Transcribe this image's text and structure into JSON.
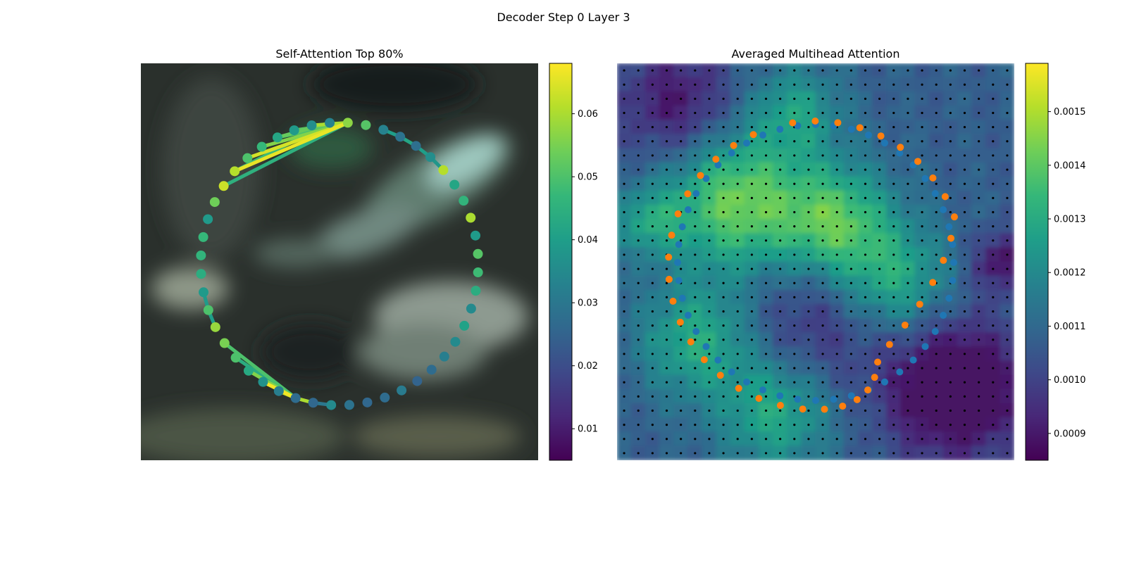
{
  "figure": {
    "suptitle": "Decoder Step 0 Layer 3"
  },
  "colors": {
    "viridis": [
      "#440154",
      "#482878",
      "#3e4989",
      "#31688e",
      "#26828e",
      "#1f9e89",
      "#35b779",
      "#6ece58",
      "#b5de2b",
      "#fde725"
    ],
    "blue_points": "#1f77b4",
    "orange_points": "#ff7f0e",
    "grid_dots": "#000000"
  },
  "chart_data": [
    {
      "type": "scatter",
      "title": "Self-Attention Top 80%",
      "description_of_marks": "48 contour points on a circle, colored by attention weight; line segments connect attending point pairs",
      "colorbar": {
        "min": 0.005,
        "max": 0.068,
        "ticks": [
          "0.01",
          "0.02",
          "0.03",
          "0.04",
          "0.05",
          "0.06"
        ],
        "tick_values": [
          0.01,
          0.02,
          0.03,
          0.04,
          0.05,
          0.06
        ]
      },
      "point_weights": [
        0.057,
        0.051,
        0.033,
        0.029,
        0.028,
        0.036,
        0.061,
        0.042,
        0.046,
        0.06,
        0.039,
        0.051,
        0.048,
        0.044,
        0.035,
        0.041,
        0.035,
        0.032,
        0.027,
        0.025,
        0.031,
        0.027,
        0.026,
        0.029,
        0.035,
        0.026,
        0.027,
        0.032,
        0.037,
        0.043,
        0.05,
        0.055,
        0.058,
        0.05,
        0.039,
        0.044,
        0.046,
        0.047,
        0.039,
        0.054,
        0.063,
        0.061,
        0.05,
        0.047,
        0.042,
        0.039,
        0.036,
        0.033
      ],
      "edges": [
        {
          "from": 0,
          "to": 46,
          "weight": 0.06
        },
        {
          "from": 0,
          "to": 45,
          "weight": 0.052
        },
        {
          "from": 0,
          "to": 44,
          "weight": 0.05
        },
        {
          "from": 0,
          "to": 43,
          "weight": 0.056
        },
        {
          "from": 0,
          "to": 42,
          "weight": 0.064
        },
        {
          "from": 0,
          "to": 41,
          "weight": 0.066
        },
        {
          "from": 0,
          "to": 40,
          "weight": 0.045
        },
        {
          "from": 47,
          "to": 41,
          "weight": 0.048
        },
        {
          "from": 47,
          "to": 44,
          "weight": 0.053
        },
        {
          "from": 2,
          "to": 3,
          "weight": 0.04
        },
        {
          "from": 3,
          "to": 4,
          "weight": 0.042
        },
        {
          "from": 4,
          "to": 5,
          "weight": 0.04
        },
        {
          "from": 5,
          "to": 6,
          "weight": 0.038
        },
        {
          "from": 24,
          "to": 25,
          "weight": 0.03
        },
        {
          "from": 25,
          "to": 26,
          "weight": 0.06
        },
        {
          "from": 26,
          "to": 27,
          "weight": 0.062
        },
        {
          "from": 26,
          "to": 28,
          "weight": 0.067
        },
        {
          "from": 26,
          "to": 29,
          "weight": 0.056
        },
        {
          "from": 26,
          "to": 30,
          "weight": 0.044
        },
        {
          "from": 26,
          "to": 31,
          "weight": 0.05
        },
        {
          "from": 32,
          "to": 33,
          "weight": 0.04
        },
        {
          "from": 33,
          "to": 34,
          "weight": 0.039
        }
      ]
    },
    {
      "type": "heatmap",
      "title": "Averaged Multihead Attention",
      "description_of_marks": "28x28 attention heatmap over image with sampling grid dots, blue predicted contour points and orange reference points",
      "grid_size": 28,
      "colorbar": {
        "min": 0.00085,
        "max": 0.00159,
        "ticks": [
          "0.0009",
          "0.0010",
          "0.0011",
          "0.0012",
          "0.0013",
          "0.0014",
          "0.0015"
        ],
        "tick_values": [
          0.0009,
          0.001,
          0.0011,
          0.0012,
          0.0013,
          0.0014,
          0.0015
        ]
      },
      "blue_point_count": 48,
      "orange_point_count": 40
    }
  ]
}
